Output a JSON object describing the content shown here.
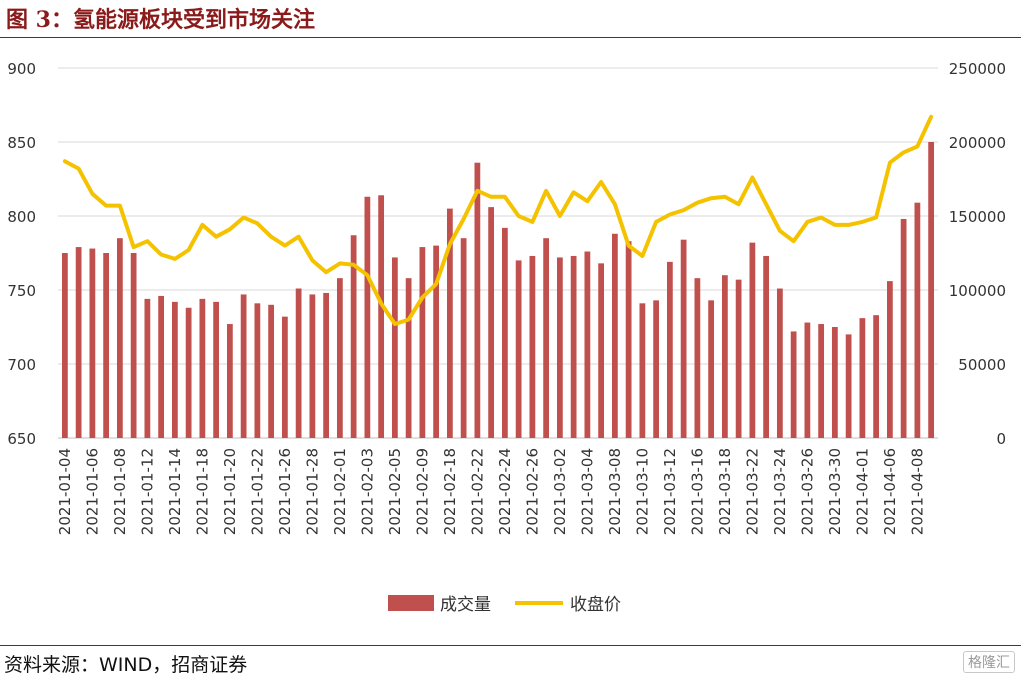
{
  "header": {
    "title": "图 3：氢能源板块受到市场关注"
  },
  "footer": {
    "source": "资料来源：WIND，招商证券",
    "watermark": "格隆汇"
  },
  "colors": {
    "bar": "#C0504D",
    "line": "#F5C200",
    "title": "#8B1A1A"
  },
  "chart_data": {
    "type": "bar+line",
    "title": "",
    "x_tick_labels": [
      "2021-01-04",
      "2021-01-06",
      "2021-01-08",
      "2021-01-12",
      "2021-01-14",
      "2021-01-18",
      "2021-01-20",
      "2021-01-22",
      "2021-01-26",
      "2021-01-28",
      "2021-02-01",
      "2021-02-03",
      "2021-02-05",
      "2021-02-09",
      "2021-02-18",
      "2021-02-22",
      "2021-02-24",
      "2021-02-26",
      "2021-03-02",
      "2021-03-04",
      "2021-03-08",
      "2021-03-10",
      "2021-03-12",
      "2021-03-16",
      "2021-03-18",
      "2021-03-22",
      "2021-03-24",
      "2021-03-26",
      "2021-03-30",
      "2021-04-01",
      "2021-04-06",
      "2021-04-08"
    ],
    "left_axis": {
      "min": 650,
      "max": 900,
      "ticks": [
        650,
        700,
        750,
        800,
        850,
        900
      ]
    },
    "right_axis": {
      "min": 0,
      "max": 250000,
      "ticks": [
        "0",
        "50000",
        "100000",
        "150000",
        "200000",
        "250000"
      ]
    },
    "grid": true,
    "legend_position": "bottom",
    "series": [
      {
        "name": "成交量",
        "type": "bar",
        "axis": "right",
        "values": [
          125000,
          129000,
          128000,
          125000,
          135000,
          125000,
          94000,
          96000,
          92000,
          88000,
          94000,
          92000,
          77000,
          97000,
          91000,
          90000,
          82000,
          101000,
          97000,
          98000,
          108000,
          137000,
          163000,
          164000,
          122000,
          108000,
          129000,
          130000,
          155000,
          135000,
          186000,
          156000,
          142000,
          120000,
          123000,
          135000,
          122000,
          123000,
          126000,
          118000,
          138000,
          133000,
          91000,
          93000,
          119000,
          134000,
          108000,
          93000,
          110000,
          107000,
          132000,
          123000,
          101000,
          72000,
          78000,
          77000,
          75000,
          70000,
          81000,
          83000,
          106000,
          148000,
          159000,
          200000
        ]
      },
      {
        "name": "收盘价",
        "type": "line",
        "axis": "left",
        "values": [
          837,
          832,
          815,
          807,
          807,
          779,
          783,
          774,
          771,
          777,
          794,
          786,
          791,
          799,
          795,
          786,
          780,
          786,
          770,
          762,
          768,
          767,
          760,
          741,
          727,
          730,
          745,
          754,
          781,
          798,
          817,
          813,
          813,
          800,
          796,
          817,
          800,
          816,
          810,
          823,
          808,
          780,
          773,
          796,
          801,
          804,
          809,
          812,
          813,
          808,
          826,
          808,
          790,
          783,
          796,
          799,
          794,
          794,
          796,
          799,
          836,
          843,
          847,
          867
        ]
      }
    ]
  }
}
